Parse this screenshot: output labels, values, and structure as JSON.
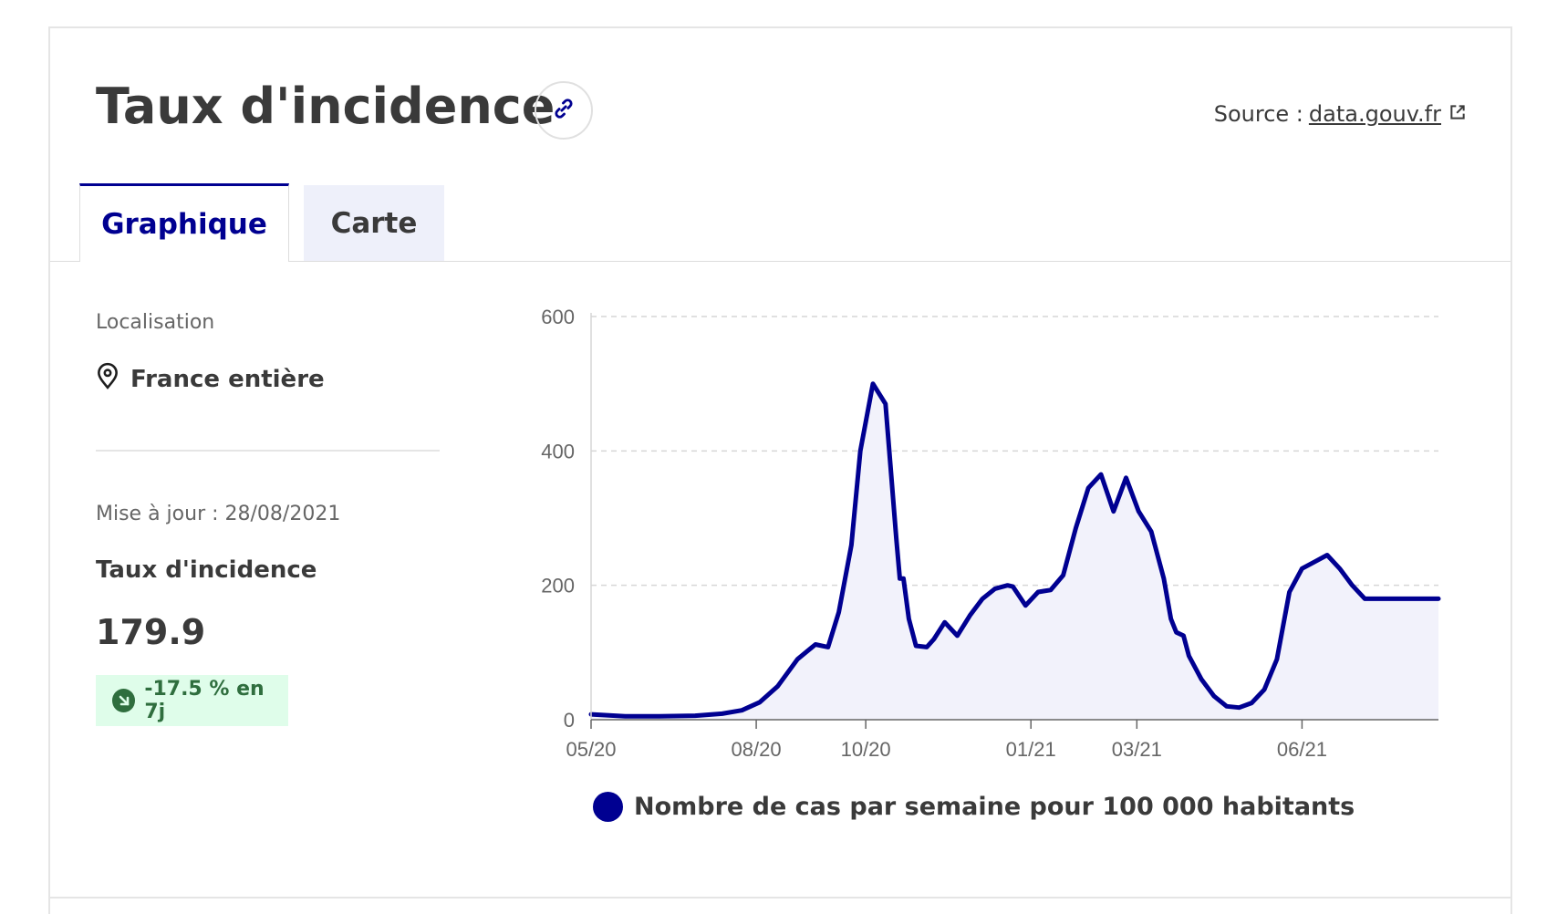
{
  "header": {
    "title": "Taux d'incidence",
    "source_prefix": "Source :",
    "source_link": "data.gouv.fr"
  },
  "tabs": [
    {
      "label": "Graphique",
      "active": true
    },
    {
      "label": "Carte",
      "active": false
    }
  ],
  "sidebar": {
    "location_label": "Localisation",
    "location_value": "France entière",
    "update_text": "Mise à jour : 28/08/2021",
    "metric_label": "Taux d'incidence",
    "metric_value": "179.9",
    "trend": "-17.5 % en 7j"
  },
  "colors": {
    "accent": "#000091",
    "badge_bg": "#dffdea",
    "badge_fg": "#2f6e3e",
    "fill": "#f2f2fb"
  },
  "chart_data": {
    "type": "area",
    "xlabel": "",
    "ylabel": "",
    "ylim": [
      0,
      600
    ],
    "yticks": [
      0,
      200,
      400,
      600
    ],
    "xlim": [
      "2020-05-13",
      "2021-08-28"
    ],
    "xticks": [
      {
        "date": "2020-05-13",
        "label": "05/20"
      },
      {
        "date": "2020-08-13",
        "label": "08/20"
      },
      {
        "date": "2020-10-13",
        "label": "10/20"
      },
      {
        "date": "2021-01-13",
        "label": "01/21"
      },
      {
        "date": "2021-03-13",
        "label": "03/21"
      },
      {
        "date": "2021-06-13",
        "label": "06/21"
      }
    ],
    "grid": true,
    "legend_position": "bottom",
    "series": [
      {
        "name": "Nombre de cas par semaine pour 100 000 habitants",
        "color": "#000091",
        "x": [
          "2020-05-13",
          "2020-06-01",
          "2020-06-20",
          "2020-07-10",
          "2020-07-25",
          "2020-08-05",
          "2020-08-15",
          "2020-08-25",
          "2020-09-05",
          "2020-09-15",
          "2020-09-22",
          "2020-09-28",
          "2020-10-05",
          "2020-10-10",
          "2020-10-17",
          "2020-10-24",
          "2020-10-30",
          "2020-11-01",
          "2020-11-03",
          "2020-11-06",
          "2020-11-10",
          "2020-11-16",
          "2020-11-20",
          "2020-11-26",
          "2020-12-03",
          "2020-12-10",
          "2020-12-17",
          "2020-12-24",
          "2020-12-31",
          "2021-01-03",
          "2021-01-10",
          "2021-01-17",
          "2021-01-24",
          "2021-01-31",
          "2021-02-07",
          "2021-02-14",
          "2021-02-21",
          "2021-02-28",
          "2021-03-07",
          "2021-03-14",
          "2021-03-21",
          "2021-03-28",
          "2021-04-01",
          "2021-04-04",
          "2021-04-08",
          "2021-04-11",
          "2021-04-18",
          "2021-04-25",
          "2021-05-02",
          "2021-05-09",
          "2021-05-16",
          "2021-05-23",
          "2021-05-30",
          "2021-06-06",
          "2021-06-13",
          "2021-06-20",
          "2021-06-27",
          "2021-07-04",
          "2021-07-11",
          "2021-07-18",
          "2021-07-25",
          "2021-08-01",
          "2021-08-08",
          "2021-08-15",
          "2021-08-22",
          "2021-08-28"
        ],
        "values": [
          8,
          5,
          5,
          6,
          9,
          14,
          26,
          50,
          90,
          112,
          108,
          160,
          260,
          400,
          500,
          470,
          270,
          210,
          210,
          150,
          110,
          108,
          120,
          145,
          125,
          155,
          180,
          195,
          200,
          198,
          170,
          190,
          193,
          215,
          285,
          345,
          365,
          310,
          360,
          310,
          280,
          210,
          150,
          130,
          125,
          95,
          60,
          35,
          20,
          18,
          25,
          45,
          90,
          190,
          225,
          235,
          245,
          225,
          200,
          180,
          180,
          180,
          180,
          180,
          180,
          180
        ]
      }
    ]
  }
}
